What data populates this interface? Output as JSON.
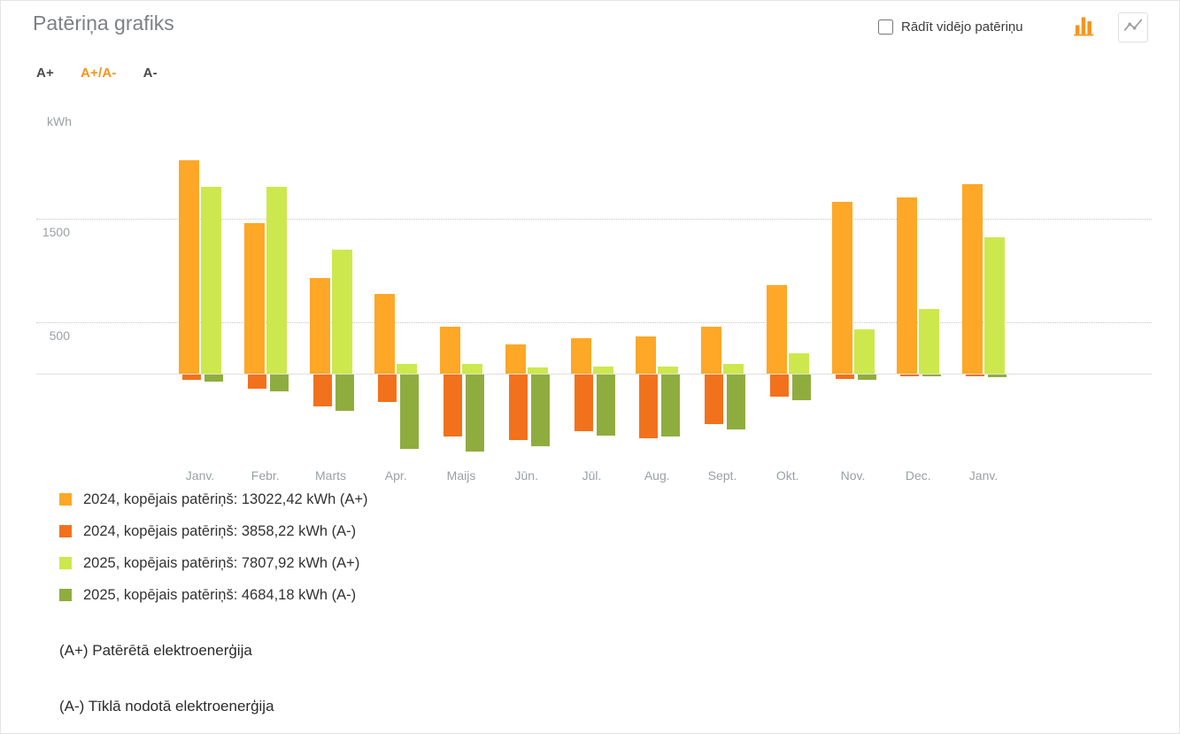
{
  "header": {
    "title": "Patēriņa grafiks",
    "average_checkbox_label": "Rādīt vidējo patēriņu",
    "average_checkbox_checked": false
  },
  "toolbar": {
    "icons": [
      {
        "name": "bar-chart-icon",
        "active": true,
        "color": "#f7941d"
      },
      {
        "name": "line-chart-icon",
        "active": false,
        "color": "#9e9e9e"
      }
    ]
  },
  "tabs": [
    {
      "label": "A+",
      "active": false
    },
    {
      "label": "A+/A-",
      "active": true
    },
    {
      "label": "A-",
      "active": false
    }
  ],
  "chart_data": {
    "type": "bar",
    "unit_label": "kWh",
    "categories": [
      "Janv.",
      "Febr.",
      "Marts",
      "Apr.",
      "Maijs",
      "Jūn.",
      "Jūl.",
      "Aug.",
      "Sept.",
      "Okt.",
      "Nov.",
      "Dec.",
      "Janv."
    ],
    "yticks": [
      500,
      1500
    ],
    "ylim": [
      -900,
      2200
    ],
    "grid": "dotted-horizontal",
    "legend_position": "bottom-left",
    "series": [
      {
        "name": "2024, kopējais patēriņš: 13022,42 kWh (A+)",
        "color": "#FFA726",
        "direction": "positive",
        "values": [
          2060,
          1450,
          920,
          770,
          455,
          285,
          340,
          360,
          455,
          855,
          1655,
          1700,
          1830
        ]
      },
      {
        "name": "2024, kopējais patēriņš: 3858,22 kWh (A-)",
        "color": "#F2711C",
        "direction": "negative",
        "values": [
          55,
          135,
          310,
          265,
          600,
          630,
          550,
          615,
          480,
          215,
          45,
          15,
          20
        ]
      },
      {
        "name": "2025, kopējais patēriņš: 7807,92 kWh (A+)",
        "color": "#CDE84D",
        "direction": "positive",
        "values": [
          1800,
          1800,
          1200,
          95,
          95,
          60,
          70,
          70,
          90,
          200,
          430,
          625,
          1320
        ]
      },
      {
        "name": "2025, kopējais patēriņš: 4684,18 kWh (A-)",
        "color": "#8FAD3F",
        "direction": "negative",
        "values": [
          65,
          160,
          350,
          720,
          740,
          690,
          590,
          600,
          530,
          250,
          55,
          15,
          25
        ]
      }
    ]
  },
  "footnotes": [
    "(A+) Patērētā elektroenerģija",
    "(A-) Tīklā nodotā elektroenerģija"
  ]
}
